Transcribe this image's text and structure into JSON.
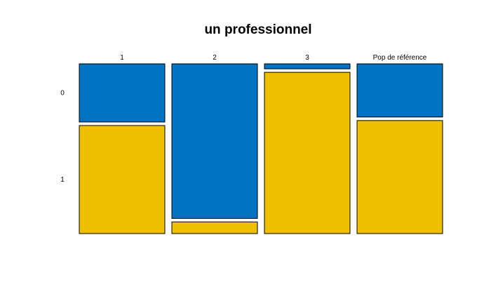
{
  "chart_data": {
    "type": "mosaic",
    "title": "un professionnel",
    "categories": [
      "1",
      "2",
      "3",
      "Pop de référence"
    ],
    "rows": [
      "0",
      "1"
    ],
    "row_colors": [
      "#0072C2",
      "#EFC000"
    ],
    "proportions": [
      [
        0.35,
        0.65
      ],
      [
        0.93,
        0.07
      ],
      [
        0.03,
        0.97
      ],
      [
        0.32,
        0.68
      ]
    ]
  }
}
